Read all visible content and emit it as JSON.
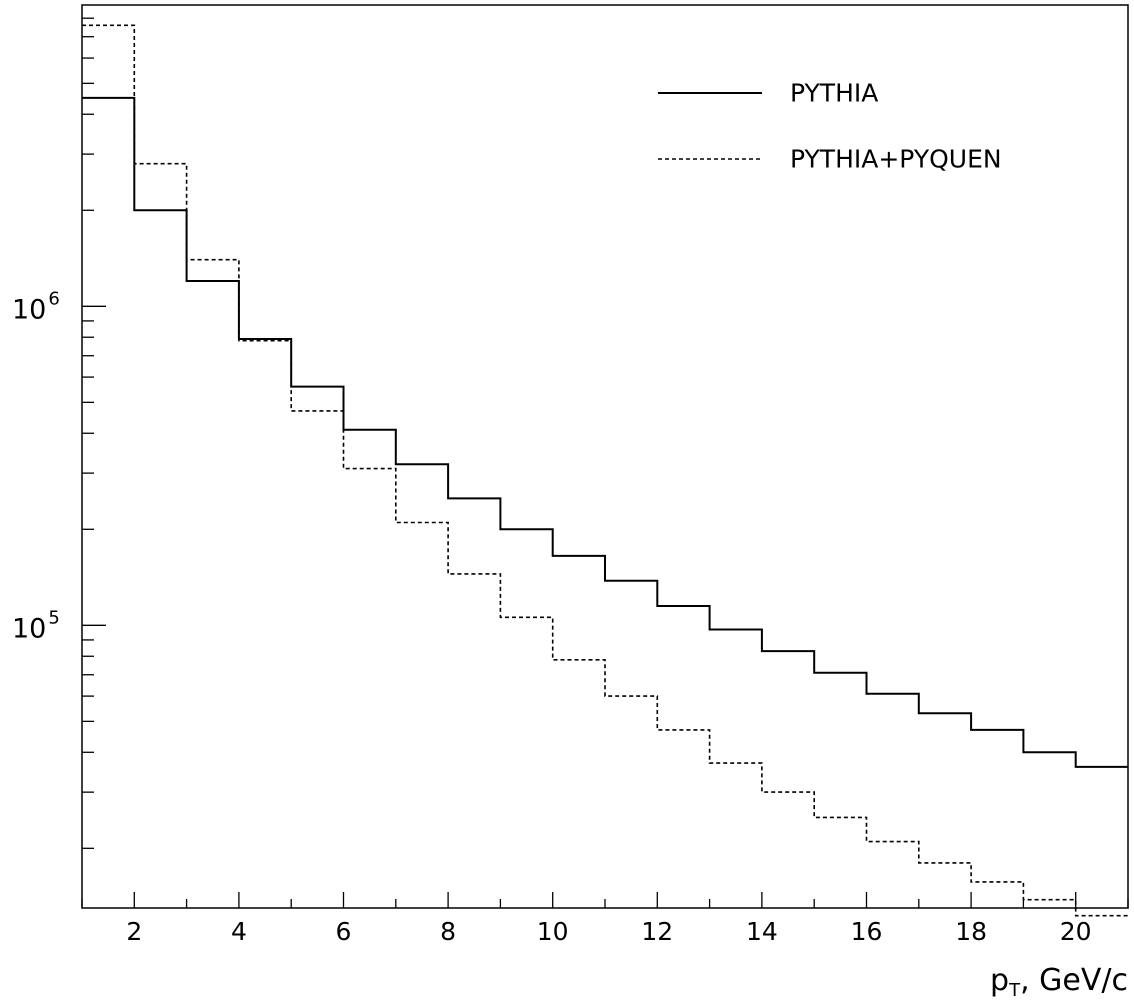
{
  "chart_data": {
    "type": "line",
    "step": true,
    "title": "",
    "xlabel": "p",
    "xlabel_subscript": "T",
    "xlabel_suffix": ", GeV/c",
    "ylabel": "",
    "xlim": [
      1,
      21
    ],
    "ylim": [
      13000,
      8800000
    ],
    "yscale": "log",
    "grid": false,
    "legend_position": "top-right",
    "x_ticks": [
      "2",
      "4",
      "6",
      "8",
      "10",
      "12",
      "14",
      "16",
      "18",
      "20"
    ],
    "y_ticks": [
      {
        "value": 1000000,
        "base": "10",
        "exp": "6"
      },
      {
        "value": 100000,
        "base": "10",
        "exp": "5"
      }
    ],
    "bin_edges": [
      1,
      2,
      3,
      4,
      5,
      6,
      7,
      8,
      9,
      10,
      11,
      12,
      13,
      14,
      15,
      16,
      17,
      18,
      19,
      20,
      21
    ],
    "series": [
      {
        "name": "PYTHIA",
        "style": "solid",
        "color": "#000000",
        "values": [
          4500000,
          2000000,
          1200000,
          790000,
          560000,
          410000,
          320000,
          250000,
          200000,
          165000,
          138000,
          115000,
          97000,
          83000,
          71000,
          61000,
          53000,
          47000,
          40000,
          36000
        ]
      },
      {
        "name": "PYTHIA+PYQUEN",
        "style": "dashed",
        "color": "#000000",
        "values": [
          7600000,
          2800000,
          1400000,
          780000,
          470000,
          310000,
          210000,
          145000,
          106000,
          78000,
          60000,
          47000,
          37000,
          30000,
          25000,
          21000,
          18000,
          15700,
          13800,
          12300
        ]
      }
    ]
  }
}
